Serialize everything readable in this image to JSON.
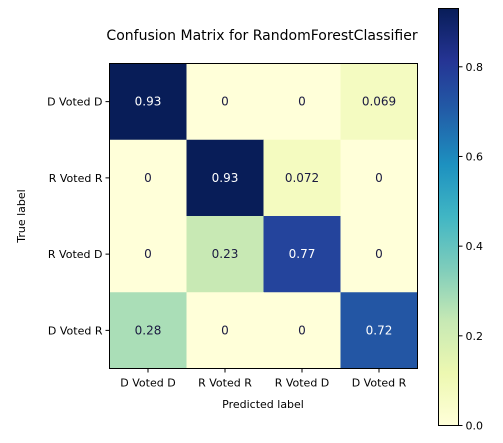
{
  "chart_data": {
    "type": "heatmap",
    "title": "Confusion Matrix for RandomForestClassifier",
    "xlabel": "Predicted label",
    "ylabel": "True label",
    "x_categories": [
      "D Voted D",
      "R Voted R",
      "R Voted D",
      "D Voted R"
    ],
    "y_categories": [
      "D Voted D",
      "R Voted R",
      "R Voted D",
      "D Voted R"
    ],
    "values": [
      [
        0.93,
        0,
        0,
        0.069
      ],
      [
        0,
        0.93,
        0.072,
        0
      ],
      [
        0,
        0.23,
        0.77,
        0
      ],
      [
        0.28,
        0,
        0,
        0.72
      ]
    ],
    "cell_labels": [
      [
        "0.93",
        "0",
        "0",
        "0.069"
      ],
      [
        "0",
        "0.93",
        "0.072",
        "0"
      ],
      [
        "0",
        "0.23",
        "0.77",
        "0"
      ],
      [
        "0.28",
        "0",
        "0",
        "0.72"
      ]
    ],
    "colormap": "YlGnBu",
    "colorbar": {
      "range": [
        0,
        0.93
      ],
      "ticks": [
        0.0,
        0.2,
        0.4,
        0.6,
        0.8
      ],
      "tick_labels": [
        "0.0",
        "0.2",
        "0.4",
        "0.6",
        "0.8"
      ]
    },
    "grid": false
  }
}
